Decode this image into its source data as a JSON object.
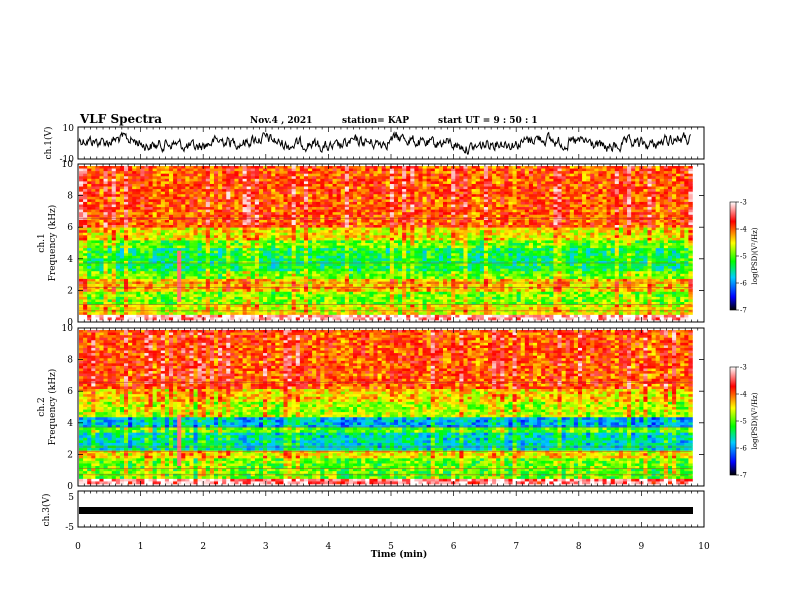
{
  "header": {
    "title": "VLF Spectra",
    "date": "Nov.4 , 2021",
    "station": "station= KAP",
    "start_time": "start UT = 9 : 50 : 1"
  },
  "xaxis": {
    "label": "Time (min)",
    "ticks": [
      "0",
      "1",
      "2",
      "3",
      "4",
      "5",
      "6",
      "7",
      "8",
      "9",
      "10"
    ],
    "range": [
      0,
      10
    ]
  },
  "colorbar": {
    "label": "log(PSD)(V²/Hz)",
    "ticks": [
      "-3",
      "-4",
      "-5",
      "-6",
      "-7"
    ],
    "range": [
      -7,
      -3
    ]
  },
  "chart_data": [
    {
      "type": "line",
      "channel": "ch.1",
      "ylabel": "ch.1(V)",
      "ylim": [
        -10,
        10
      ],
      "ylim_labels": [
        "10",
        "-10"
      ],
      "xlim": [
        0,
        10
      ],
      "data_extent_min": 9.8
    },
    {
      "type": "heatmap",
      "channel_label": "ch.1",
      "ylabel": "Frequency (kHz)",
      "ylim": [
        0,
        10
      ],
      "yticks": [
        "0",
        "2",
        "4",
        "6",
        "8",
        "10"
      ],
      "xlim": [
        0,
        10
      ],
      "zlim": [
        -7,
        -3
      ],
      "colorbar_label": "log(PSD)(V²/Hz)"
    },
    {
      "type": "heatmap",
      "channel_label": "ch.2",
      "ylabel": "Frequency (kHz)",
      "ylim": [
        0,
        10
      ],
      "yticks": [
        "0",
        "2",
        "4",
        "6",
        "8",
        "10"
      ],
      "xlim": [
        0,
        10
      ],
      "zlim": [
        -7,
        -3
      ],
      "colorbar_label": "log(PSD)(V²/Hz)"
    },
    {
      "type": "line",
      "channel": "ch.3",
      "ylabel": "ch.3(V)",
      "ylim": [
        -5,
        5
      ],
      "ylim_labels": [
        "5",
        "-5"
      ],
      "xlim": [
        0,
        10
      ]
    }
  ]
}
